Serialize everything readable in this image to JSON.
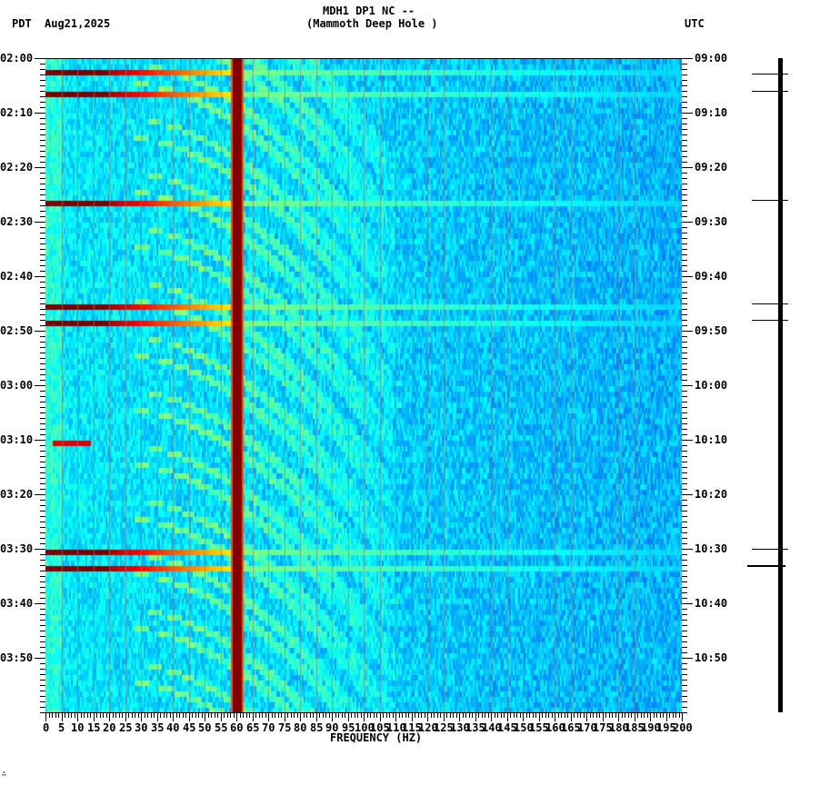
{
  "header": {
    "title_line1": "MDH1 DP1 NC --",
    "title_line2": "(Mammoth Deep Hole )",
    "left_tz": "PDT",
    "date": "Aug21,2025",
    "right_tz": "UTC"
  },
  "footer": {
    "mark": "∴"
  },
  "chart_data": {
    "type": "heatmap",
    "title": "MDH1 DP1 NC -- (Mammoth Deep Hole )",
    "subtitle": "Aug21,2025",
    "xlabel": "FREQUENCY (HZ)",
    "ylabel_left": "PDT",
    "ylabel_right": "UTC",
    "xlim": [
      0,
      200
    ],
    "x_ticks": [
      0,
      5,
      10,
      15,
      20,
      25,
      30,
      35,
      40,
      45,
      50,
      55,
      60,
      65,
      70,
      75,
      80,
      85,
      90,
      95,
      100,
      105,
      110,
      115,
      120,
      125,
      130,
      135,
      140,
      145,
      150,
      155,
      160,
      165,
      170,
      175,
      180,
      185,
      190,
      195,
      200
    ],
    "y_ticks_left": [
      "02:00",
      "02:10",
      "02:20",
      "02:30",
      "02:40",
      "02:50",
      "03:00",
      "03:10",
      "03:20",
      "03:30",
      "03:40",
      "03:50"
    ],
    "y_ticks_right": [
      "09:00",
      "09:10",
      "09:20",
      "09:30",
      "09:40",
      "09:50",
      "10:00",
      "10:10",
      "10:20",
      "10:30",
      "10:40",
      "10:50"
    ],
    "time_span_minutes": 120,
    "colormap": "jet",
    "persistent_lines_hz": [
      60
    ],
    "broadband_events_pdt": [
      "02:02",
      "02:06",
      "02:26",
      "02:45",
      "02:48",
      "03:30",
      "03:33"
    ],
    "short_event": {
      "time_pdt": "03:10",
      "freq_range_hz": [
        2,
        14
      ]
    },
    "repeating_arcs": {
      "description": "downward-curving chirp-like bands repeating ~every 10 minutes between 20-120 Hz"
    },
    "seismogram_events_pdt": [
      "02:03",
      "02:06",
      "02:26",
      "02:45",
      "02:48",
      "03:30",
      "03:33"
    ]
  }
}
